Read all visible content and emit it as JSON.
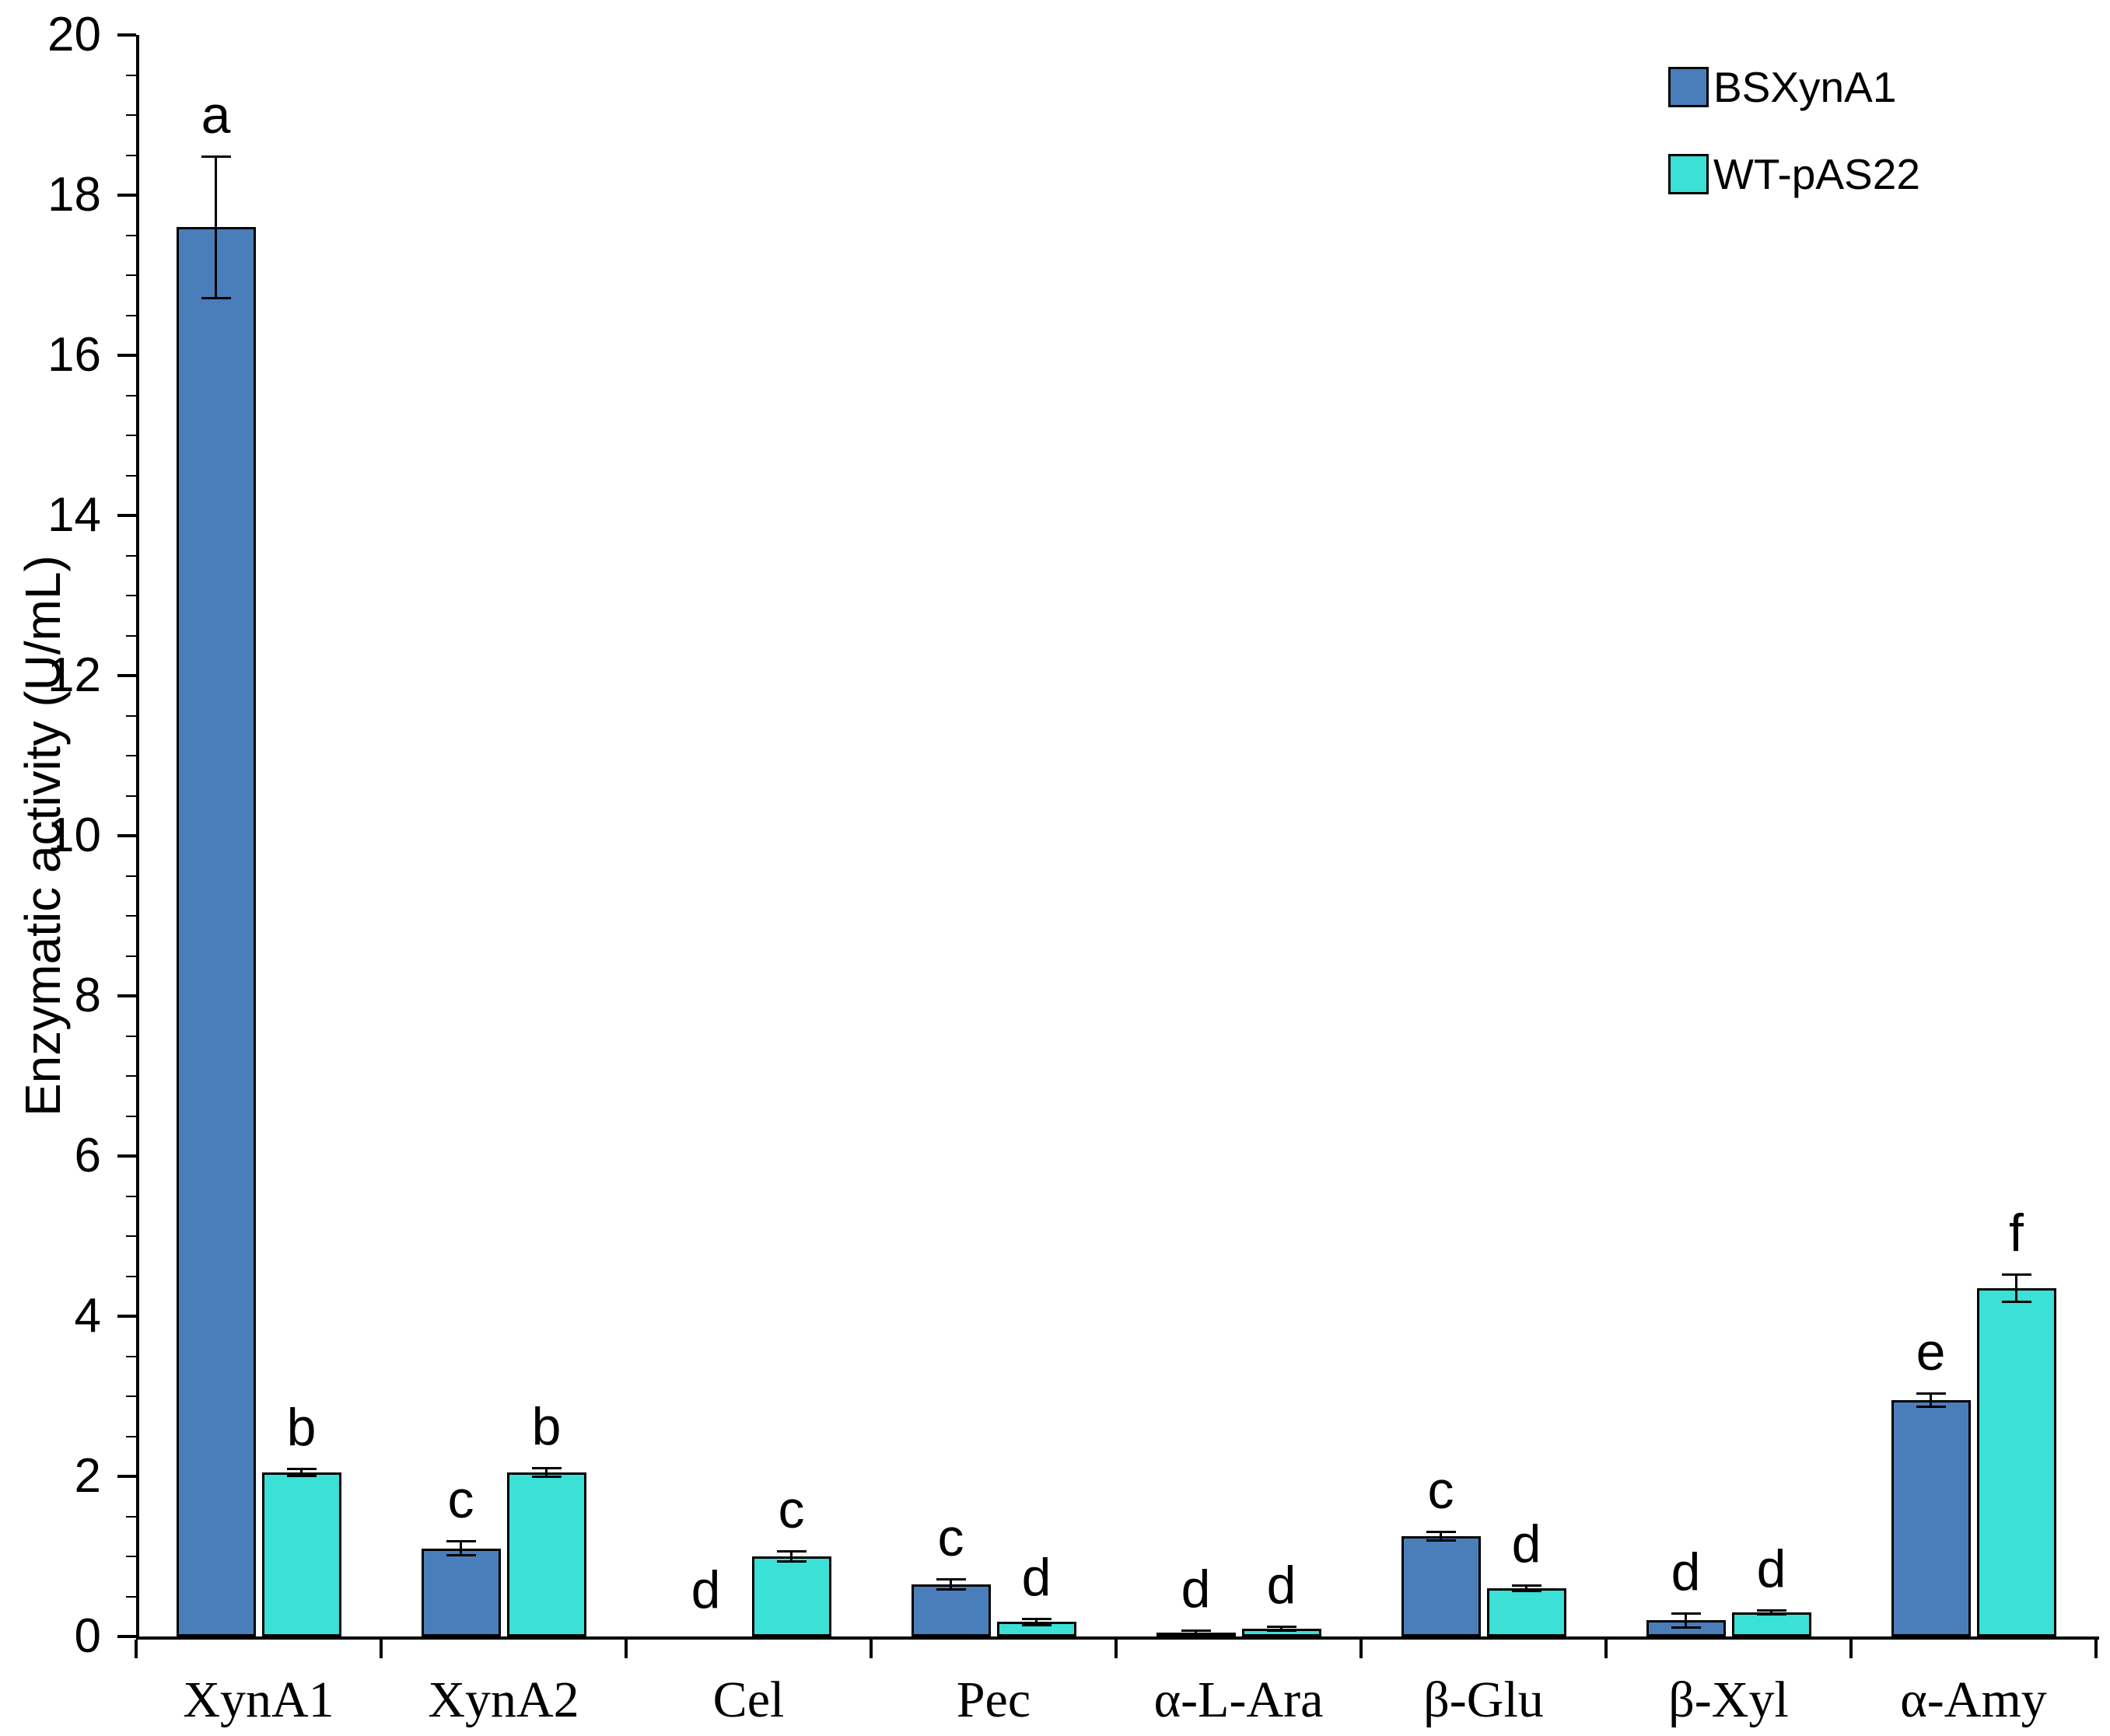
{
  "chart_data": {
    "type": "bar",
    "title": "",
    "xlabel": "",
    "ylabel": "Enzymatic activity (U/mL)",
    "ylim": [
      0,
      20
    ],
    "ytick_step": 2,
    "minor_tick_step": 0.5,
    "grid": false,
    "legend_position": "top-right",
    "categories": [
      "XynA1",
      "XynA2",
      "Cel",
      "Pec",
      "α-L-Ara",
      "β-Glu",
      "β-Xyl",
      "α-Amy"
    ],
    "series": [
      {
        "name": "BSXynA1",
        "color": "#4a7ebb",
        "values": [
          17.6,
          1.1,
          0,
          0.65,
          0.05,
          1.25,
          0.2,
          2.95
        ],
        "errors": [
          0.9,
          0.1,
          0,
          0.08,
          0.04,
          0.07,
          0.1,
          0.1
        ],
        "letters": [
          "a",
          "c",
          "d",
          "c",
          "d",
          "c",
          "d",
          "e"
        ]
      },
      {
        "name": "WT-pAS22",
        "color": "#3be0d6",
        "values": [
          2.05,
          2.05,
          1.0,
          0.18,
          0.1,
          0.6,
          0.3,
          4.35
        ],
        "errors": [
          0.06,
          0.07,
          0.08,
          0.05,
          0.04,
          0.05,
          0.04,
          0.18
        ],
        "letters": [
          "b",
          "b",
          "c",
          "d",
          "d",
          "d",
          "d",
          "f"
        ]
      }
    ]
  }
}
